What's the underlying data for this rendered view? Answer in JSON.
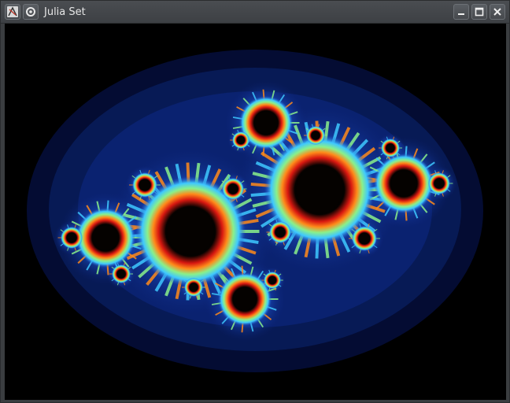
{
  "window": {
    "title": "Julia Set",
    "app_icon": "julia-icon",
    "buttons": [
      {
        "name": "minimize",
        "icon": "minimize-icon"
      },
      {
        "name": "maximize",
        "icon": "maximize-icon"
      },
      {
        "name": "close",
        "icon": "close-icon"
      }
    ]
  },
  "render": {
    "subject": "julia-set-fractal",
    "colors": {
      "background": "#000000",
      "halo": "#0a1a66",
      "mid": "#1e50c8",
      "cyan": "#3ec8ff",
      "green": "#8af08a",
      "orange": "#ff8a1a",
      "red": "#d81810",
      "core": "#050200"
    }
  }
}
